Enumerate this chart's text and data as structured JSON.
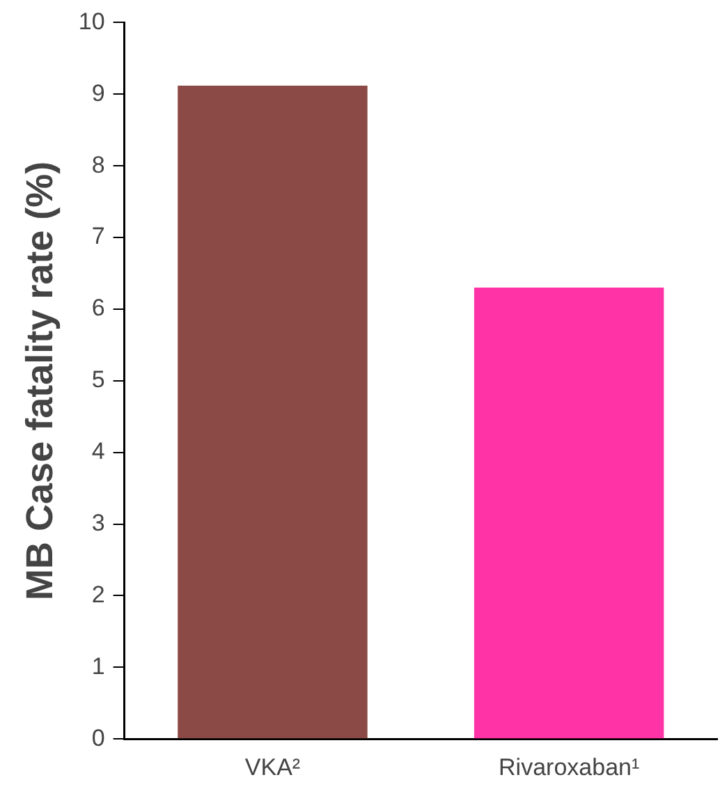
{
  "chart_data": {
    "type": "bar",
    "ylabel": "MB Case fatality rate (%)",
    "categories": [
      "VKA²",
      "Rivaroxaban¹"
    ],
    "values": [
      9.12,
      6.3
    ],
    "colors": [
      "#8b4a45",
      "#ff33a6"
    ],
    "ylim": [
      0,
      10
    ],
    "yticks": [
      0,
      1,
      2,
      3,
      4,
      5,
      6,
      7,
      8,
      9,
      10
    ],
    "grid": false,
    "legend": false
  }
}
